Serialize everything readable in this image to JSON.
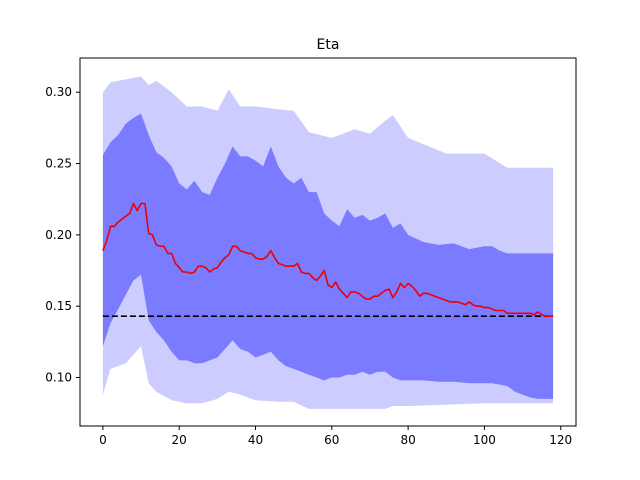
{
  "chart_data": {
    "type": "area",
    "title": "Eta",
    "xlabel": "",
    "ylabel": "",
    "xlim": [
      -6,
      124
    ],
    "ylim": [
      0.066,
      0.324
    ],
    "x_ticks": [
      0,
      20,
      40,
      60,
      80,
      100,
      120
    ],
    "y_ticks": [
      0.1,
      0.15,
      0.2,
      0.25,
      0.3
    ],
    "y_tick_format": 2,
    "grid": false,
    "legend": "none",
    "reference_line": {
      "y": 0.143,
      "color": "#000000",
      "style": "dashed"
    },
    "outer_band": {
      "color": "#ccccff",
      "x": [
        0,
        2,
        6,
        10,
        12,
        14,
        18,
        22,
        26,
        30,
        33,
        36,
        40,
        46,
        50,
        54,
        60,
        66,
        70,
        74,
        76,
        80,
        90,
        100,
        106,
        110,
        118
      ],
      "upper": [
        0.3,
        0.307,
        0.309,
        0.311,
        0.305,
        0.308,
        0.3,
        0.29,
        0.29,
        0.287,
        0.302,
        0.29,
        0.29,
        0.288,
        0.287,
        0.272,
        0.268,
        0.274,
        0.271,
        0.28,
        0.284,
        0.268,
        0.257,
        0.257,
        0.247,
        0.247,
        0.247
      ],
      "lower": [
        0.088,
        0.106,
        0.11,
        0.122,
        0.096,
        0.09,
        0.084,
        0.082,
        0.082,
        0.085,
        0.09,
        0.088,
        0.084,
        0.083,
        0.083,
        0.078,
        0.078,
        0.078,
        0.078,
        0.078,
        0.08,
        0.08,
        0.081,
        0.082,
        0.082,
        0.082,
        0.082
      ]
    },
    "inner_band": {
      "color": "#7b7bff",
      "x": [
        0,
        2,
        4,
        6,
        8,
        10,
        12,
        14,
        16,
        18,
        20,
        22,
        24,
        26,
        28,
        30,
        32,
        34,
        36,
        38,
        40,
        42,
        44,
        46,
        48,
        50,
        52,
        54,
        56,
        58,
        60,
        62,
        64,
        66,
        68,
        70,
        72,
        74,
        76,
        78,
        80,
        84,
        88,
        92,
        96,
        100,
        102,
        104,
        106,
        108,
        110,
        112,
        114,
        116,
        118
      ],
      "upper": [
        0.256,
        0.265,
        0.27,
        0.278,
        0.282,
        0.285,
        0.27,
        0.258,
        0.254,
        0.248,
        0.236,
        0.232,
        0.238,
        0.23,
        0.228,
        0.24,
        0.25,
        0.262,
        0.255,
        0.255,
        0.252,
        0.248,
        0.262,
        0.248,
        0.24,
        0.236,
        0.24,
        0.23,
        0.23,
        0.215,
        0.21,
        0.206,
        0.218,
        0.212,
        0.214,
        0.21,
        0.212,
        0.215,
        0.205,
        0.208,
        0.2,
        0.195,
        0.193,
        0.194,
        0.19,
        0.192,
        0.192,
        0.189,
        0.187,
        0.187,
        0.187,
        0.187,
        0.187,
        0.187,
        0.187
      ],
      "lower": [
        0.122,
        0.138,
        0.148,
        0.158,
        0.168,
        0.172,
        0.14,
        0.132,
        0.126,
        0.118,
        0.112,
        0.112,
        0.11,
        0.11,
        0.112,
        0.114,
        0.12,
        0.126,
        0.12,
        0.118,
        0.114,
        0.116,
        0.118,
        0.112,
        0.108,
        0.106,
        0.104,
        0.102,
        0.1,
        0.098,
        0.1,
        0.1,
        0.102,
        0.102,
        0.104,
        0.102,
        0.104,
        0.104,
        0.1,
        0.098,
        0.098,
        0.098,
        0.097,
        0.097,
        0.096,
        0.096,
        0.096,
        0.095,
        0.094,
        0.09,
        0.088,
        0.086,
        0.085,
        0.085,
        0.085
      ]
    },
    "mean_line": {
      "color": "#ee0000",
      "x": [
        0,
        1,
        2,
        3,
        4,
        5,
        6,
        7,
        8,
        9,
        10,
        11,
        12,
        13,
        14,
        15,
        16,
        17,
        18,
        19,
        20,
        21,
        22,
        23,
        24,
        25,
        26,
        27,
        28,
        29,
        30,
        31,
        32,
        33,
        34,
        35,
        36,
        37,
        38,
        39,
        40,
        41,
        42,
        43,
        44,
        45,
        46,
        47,
        48,
        49,
        50,
        51,
        52,
        53,
        54,
        55,
        56,
        57,
        58,
        59,
        60,
        61,
        62,
        63,
        64,
        65,
        66,
        67,
        68,
        69,
        70,
        71,
        72,
        73,
        74,
        75,
        76,
        77,
        78,
        79,
        80,
        81,
        82,
        83,
        84,
        85,
        86,
        87,
        88,
        89,
        90,
        91,
        92,
        93,
        94,
        95,
        96,
        97,
        98,
        99,
        100,
        101,
        102,
        103,
        104,
        105,
        106,
        107,
        108,
        109,
        110,
        111,
        112,
        113,
        114,
        115,
        116,
        117,
        118
      ],
      "y": [
        0.189,
        0.196,
        0.206,
        0.206,
        0.209,
        0.211,
        0.213,
        0.215,
        0.222,
        0.217,
        0.222,
        0.222,
        0.201,
        0.2,
        0.193,
        0.192,
        0.192,
        0.187,
        0.187,
        0.18,
        0.177,
        0.174,
        0.174,
        0.173,
        0.174,
        0.178,
        0.178,
        0.177,
        0.174,
        0.176,
        0.177,
        0.181,
        0.184,
        0.186,
        0.192,
        0.192,
        0.189,
        0.188,
        0.187,
        0.187,
        0.184,
        0.183,
        0.183,
        0.185,
        0.189,
        0.184,
        0.18,
        0.179,
        0.178,
        0.178,
        0.178,
        0.18,
        0.174,
        0.173,
        0.173,
        0.17,
        0.168,
        0.171,
        0.175,
        0.165,
        0.163,
        0.167,
        0.162,
        0.159,
        0.156,
        0.16,
        0.16,
        0.159,
        0.157,
        0.155,
        0.155,
        0.157,
        0.157,
        0.159,
        0.161,
        0.162,
        0.156,
        0.16,
        0.166,
        0.163,
        0.166,
        0.164,
        0.161,
        0.157,
        0.159,
        0.159,
        0.158,
        0.157,
        0.156,
        0.155,
        0.154,
        0.153,
        0.153,
        0.153,
        0.152,
        0.151,
        0.153,
        0.151,
        0.15,
        0.15,
        0.149,
        0.149,
        0.148,
        0.147,
        0.147,
        0.147,
        0.145,
        0.145,
        0.145,
        0.145,
        0.145,
        0.145,
        0.145,
        0.144,
        0.146,
        0.144,
        0.143,
        0.143,
        0.143
      ]
    }
  }
}
